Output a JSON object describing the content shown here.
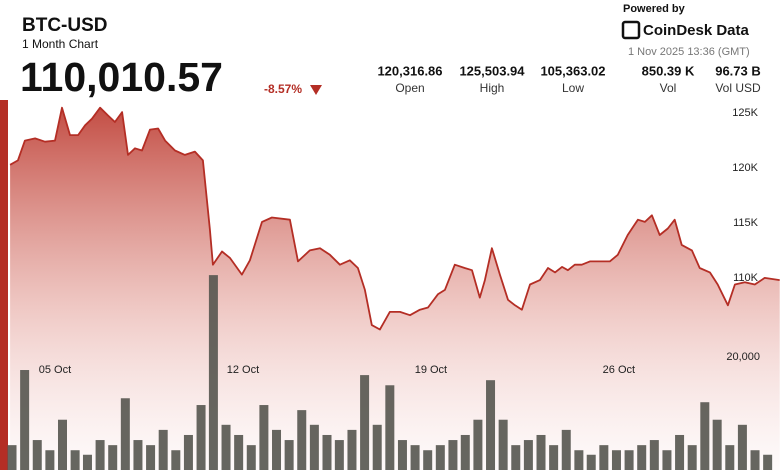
{
  "header": {
    "symbol": "BTC-USD",
    "period": "1 Month Chart",
    "price": "110,010.57",
    "change": "-8.57%",
    "stats": [
      {
        "value": "120,316.86",
        "label": "Open"
      },
      {
        "value": "125,503.94",
        "label": "High"
      },
      {
        "value": "105,363.02",
        "label": "Low"
      },
      {
        "value": "850.39 K",
        "label": "Vol"
      },
      {
        "value": "96.73 B",
        "label": "Vol USD"
      }
    ],
    "powered_by": "Powered by",
    "brand": "CoinDesk Data",
    "timestamp": "1 Nov 2025 13:36 (GMT)"
  },
  "chart_data": {
    "type": "line",
    "xlim": [
      3.325,
      32.0
    ],
    "xticks": [
      {
        "value": 5,
        "label": "05 Oct"
      },
      {
        "value": 12,
        "label": "12 Oct"
      },
      {
        "value": 19,
        "label": "19 Oct"
      },
      {
        "value": 26,
        "label": "26 Oct"
      }
    ],
    "ylim": [
      92500,
      126200
    ],
    "yticks": [
      {
        "value": 110000,
        "label": "110K"
      },
      {
        "value": 115000,
        "label": "115K"
      },
      {
        "value": 120000,
        "label": "120K"
      },
      {
        "value": 125000,
        "label": "125K"
      }
    ],
    "y2lim": [
      0,
      65500
    ],
    "y2ticks": [
      {
        "value": 20000,
        "label": "20,000"
      }
    ],
    "grid": false,
    "series": [
      {
        "type": "line",
        "color": "#b42e25",
        "x": [
          3.33,
          3.62,
          3.88,
          4.26,
          4.63,
          5.0,
          5.26,
          5.56,
          5.86,
          6.12,
          6.38,
          6.68,
          6.97,
          7.23,
          7.5,
          7.72,
          7.98,
          8.24,
          8.54,
          8.84,
          9.1,
          9.47,
          9.84,
          10.21,
          10.51,
          10.77,
          10.88,
          11.22,
          11.52,
          11.96,
          12.26,
          12.71,
          13.08,
          13.75,
          14.05,
          14.49,
          14.87,
          15.24,
          15.61,
          15.98,
          16.28,
          16.54,
          16.8,
          17.1,
          17.47,
          17.85,
          18.22,
          18.59,
          18.89,
          19.26,
          19.52,
          19.89,
          20.26,
          20.53,
          20.82,
          21.01,
          21.27,
          21.57,
          21.87,
          22.13,
          22.39,
          22.69,
          23.06,
          23.36,
          23.62,
          23.88,
          24.1,
          24.36,
          24.62,
          24.92,
          25.29,
          25.66,
          25.96,
          26.33,
          26.71,
          26.97,
          27.23,
          27.52,
          27.82,
          28.08,
          28.34,
          28.72,
          29.01,
          29.39,
          29.68,
          30.06,
          30.32,
          30.69,
          31.06,
          31.43,
          31.99
        ],
        "values": [
          120300,
          120700,
          122500,
          122700,
          122400,
          122500,
          125500,
          123000,
          123000,
          123900,
          124500,
          125500,
          124800,
          124200,
          125100,
          121200,
          121800,
          121600,
          123500,
          123600,
          122500,
          121600,
          121200,
          121500,
          120700,
          114400,
          111200,
          112400,
          111800,
          110300,
          111600,
          115100,
          115500,
          115300,
          111500,
          112500,
          112700,
          112100,
          111200,
          111600,
          110900,
          108900,
          105700,
          105300,
          106900,
          106900,
          106600,
          107100,
          107300,
          108500,
          108900,
          111200,
          110900,
          110700,
          108200,
          109800,
          112700,
          110300,
          108000,
          107500,
          107100,
          109400,
          109800,
          110900,
          110500,
          111000,
          110700,
          111200,
          111200,
          111500,
          111500,
          111500,
          112100,
          113900,
          115300,
          115100,
          115700,
          113900,
          114500,
          115300,
          113000,
          112500,
          110900,
          110500,
          109400,
          107500,
          109400,
          109600,
          109400,
          110000,
          109800
        ]
      },
      {
        "type": "bar",
        "axis": "y2",
        "color": "#55554f",
        "x": [
          3.4,
          3.87,
          4.34,
          4.81,
          5.28,
          5.75,
          6.21,
          6.68,
          7.15,
          7.62,
          8.09,
          8.56,
          9.03,
          9.5,
          9.97,
          10.44,
          10.9,
          11.37,
          11.84,
          12.31,
          12.78,
          13.25,
          13.72,
          14.19,
          14.66,
          15.13,
          15.59,
          16.06,
          16.53,
          17.0,
          17.47,
          17.94,
          18.41,
          18.88,
          19.35,
          19.82,
          20.28,
          20.75,
          21.22,
          21.69,
          22.16,
          22.63,
          23.1,
          23.57,
          24.04,
          24.51,
          24.97,
          25.44,
          25.91,
          26.38,
          26.85,
          27.32,
          27.79,
          28.26,
          28.73,
          29.2,
          29.66,
          30.13,
          30.6,
          31.07,
          31.54
        ],
        "values": [
          4400,
          17700,
          5300,
          3500,
          8900,
          3500,
          2700,
          5300,
          4400,
          12700,
          5300,
          4400,
          7100,
          3500,
          6200,
          11500,
          34500,
          8000,
          6200,
          4400,
          11500,
          7100,
          5300,
          10600,
          8000,
          6200,
          5300,
          7100,
          16800,
          8000,
          15000,
          5300,
          4400,
          3500,
          4400,
          5300,
          6200,
          8900,
          15900,
          8900,
          4400,
          5300,
          6200,
          4400,
          7100,
          3500,
          2700,
          4400,
          3500,
          3500,
          4400,
          5300,
          3500,
          6200,
          4400,
          12000,
          8900,
          4400,
          8000,
          3500,
          2700
        ]
      }
    ]
  }
}
